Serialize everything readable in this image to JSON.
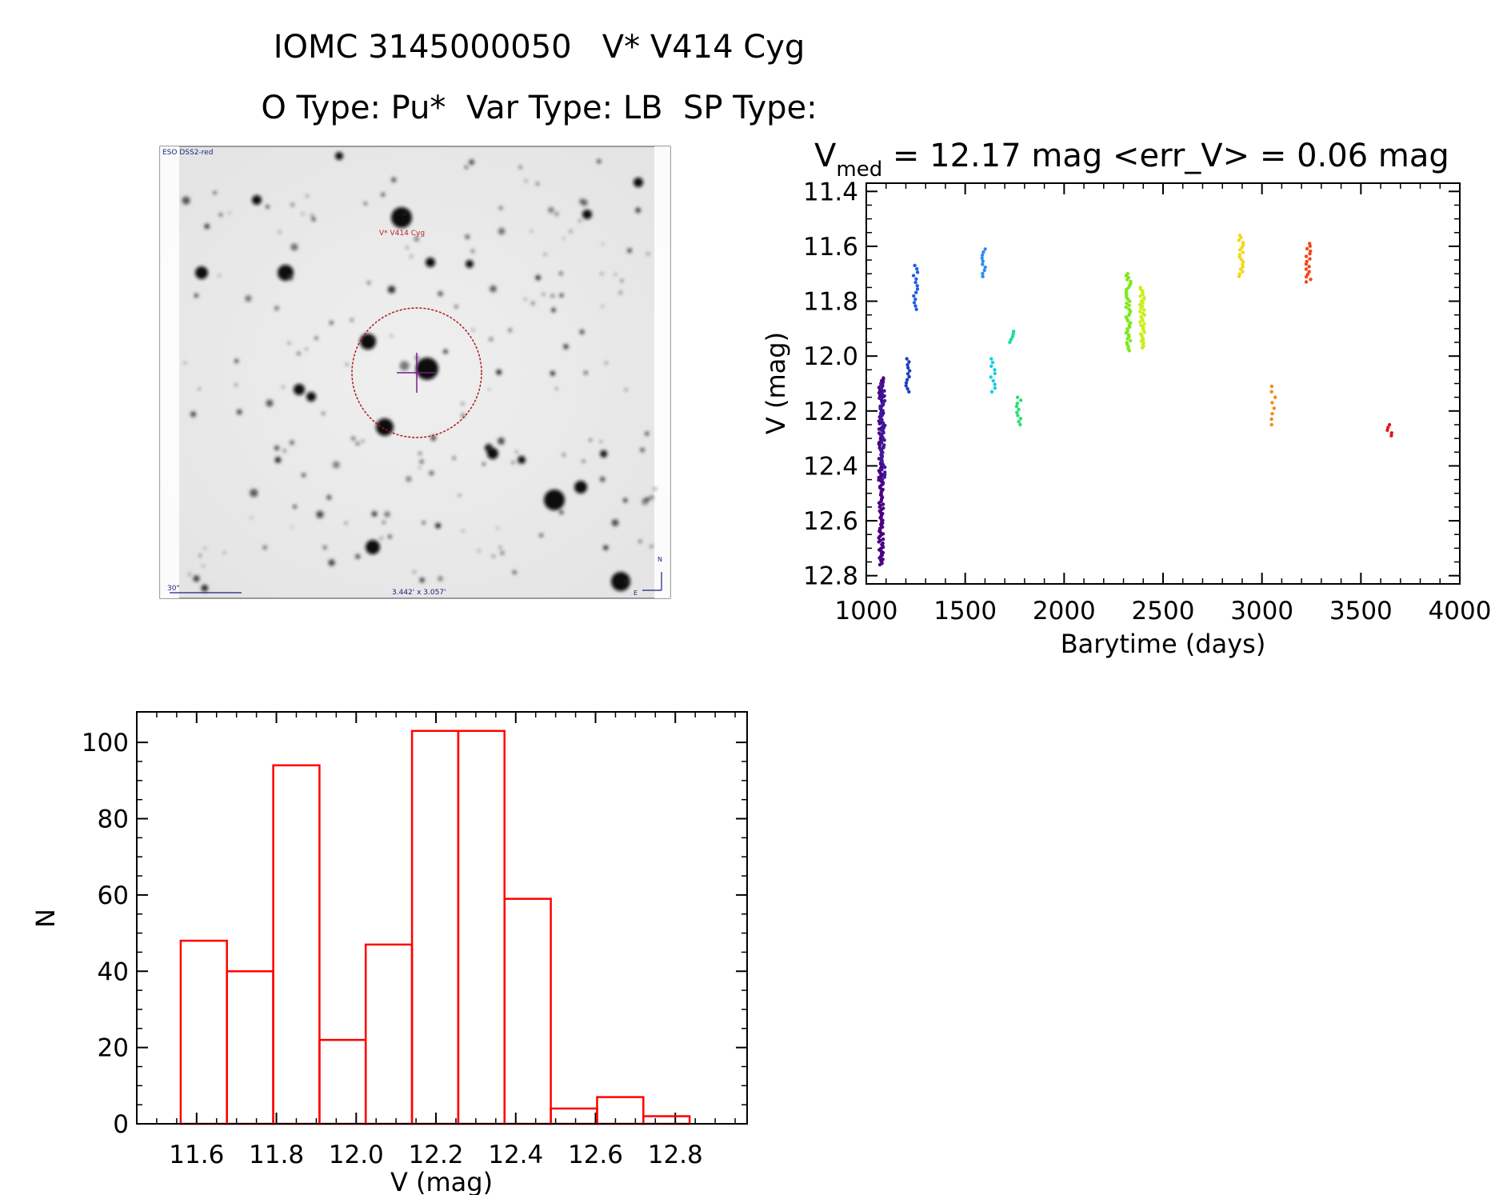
{
  "header": {
    "line1": "IOMC 3145000050   V* V414 Cyg",
    "line2": "O Type: Pu*  Var Type: LB  SP Type:"
  },
  "finder_chart": {
    "survey_label": "ESO DSS2-red",
    "target_label": "V* V414 Cyg",
    "scale_label": "30\"",
    "fov_label": "3.442' x 3.057'",
    "north_label": "N",
    "east_label": "E"
  },
  "colors": {
    "axis": "#000000",
    "histogram": "#ff0000",
    "finder_circle": "#b01818",
    "finder_cross": "#7a1a90",
    "finder_text_blue": "#1a237e"
  },
  "chart_data": [
    {
      "type": "scatter",
      "title_prefix": "V",
      "title_sub": "med",
      "title_rest": " = 12.17 mag <err_V> = 0.06 mag",
      "xlabel": "Barytime (days)",
      "ylabel": "V (mag)",
      "xlim": [
        1000,
        4000
      ],
      "ylim": [
        12.83,
        11.37
      ],
      "y_inverted": true,
      "xticks": [
        1000,
        1500,
        2000,
        2500,
        3000,
        3500,
        4000
      ],
      "yticks": [
        11.4,
        11.6,
        11.8,
        12.0,
        12.2,
        12.4,
        12.6,
        12.8
      ],
      "ytick_labels": [
        "11.4",
        "11.6",
        "11.8",
        "12.0",
        "12.2",
        "12.4",
        "12.6",
        "12.8"
      ],
      "clusters": [
        {
          "x": 1075,
          "ymin": 12.08,
          "ymax": 12.76,
          "n": 140,
          "color": "#4b0082"
        },
        {
          "x": 1083,
          "ymin": 12.1,
          "ymax": 12.45,
          "n": 40,
          "color": "#3d1a9e"
        },
        {
          "x": 1210,
          "ymin": 12.01,
          "ymax": 12.13,
          "n": 12,
          "color": "#1f3fc0"
        },
        {
          "x": 1250,
          "ymin": 11.67,
          "ymax": 11.83,
          "n": 14,
          "color": "#1f5fe0"
        },
        {
          "x": 1590,
          "ymin": 11.61,
          "ymax": 11.71,
          "n": 10,
          "color": "#2b8cf0"
        },
        {
          "x": 1640,
          "ymin": 12.01,
          "ymax": 12.13,
          "n": 10,
          "color": "#18cfe0"
        },
        {
          "x": 1735,
          "ymin": 11.91,
          "ymax": 11.95,
          "n": 5,
          "color": "#18e090"
        },
        {
          "x": 1770,
          "ymin": 12.15,
          "ymax": 12.25,
          "n": 10,
          "color": "#28e070"
        },
        {
          "x": 2325,
          "ymin": 11.7,
          "ymax": 11.98,
          "n": 40,
          "color": "#7de81c"
        },
        {
          "x": 2395,
          "ymin": 11.75,
          "ymax": 11.97,
          "n": 36,
          "color": "#c8f018"
        },
        {
          "x": 2895,
          "ymin": 11.56,
          "ymax": 11.71,
          "n": 18,
          "color": "#f0d818"
        },
        {
          "x": 3060,
          "ymin": 12.11,
          "ymax": 12.25,
          "n": 8,
          "color": "#f08c18"
        },
        {
          "x": 3235,
          "ymin": 11.59,
          "ymax": 11.73,
          "n": 16,
          "color": "#f04818"
        },
        {
          "x": 3645,
          "ymin": 12.25,
          "ymax": 12.29,
          "n": 5,
          "color": "#e01818"
        }
      ]
    },
    {
      "type": "bar",
      "subtype": "histogram",
      "xlabel": "V (mag)",
      "ylabel": "N",
      "xlim": [
        11.45,
        12.98
      ],
      "ylim": [
        0,
        108
      ],
      "xticks": [
        11.6,
        11.8,
        12.0,
        12.2,
        12.4,
        12.6,
        12.8
      ],
      "xtick_labels": [
        "11.6",
        "11.8",
        "12.0",
        "12.2",
        "12.4",
        "12.6",
        "12.8"
      ],
      "yticks": [
        0,
        20,
        40,
        60,
        80,
        100
      ],
      "bin_edges": [
        11.56,
        11.676,
        11.792,
        11.908,
        12.024,
        12.14,
        12.256,
        12.372,
        12.488,
        12.604,
        12.72,
        12.836
      ],
      "values": [
        48,
        40,
        94,
        22,
        47,
        103,
        103,
        59,
        4,
        7,
        2
      ]
    }
  ]
}
